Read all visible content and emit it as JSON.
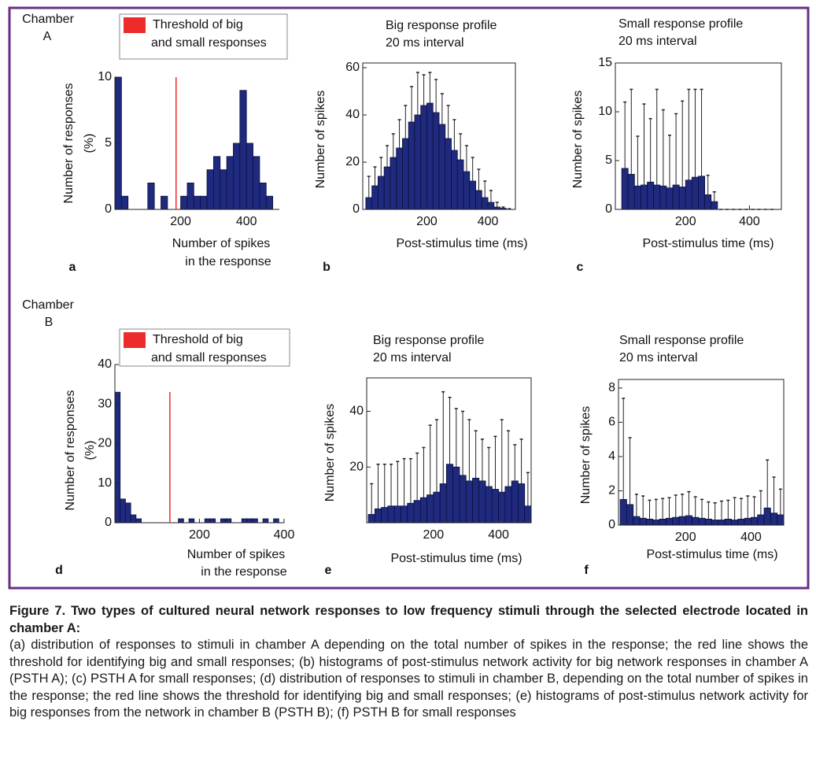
{
  "chart_data": [
    {
      "type": "histogram",
      "annotation": [
        "Chamber",
        "A"
      ],
      "panel_label": "a",
      "box": false,
      "xlabel": [
        "Number of spikes",
        "in the response"
      ],
      "ylabel": [
        "Number of responses",
        "(%)"
      ],
      "bins": [
        0,
        20,
        40,
        60,
        80,
        100,
        120,
        140,
        160,
        180,
        200,
        220,
        240,
        260,
        280,
        300,
        320,
        340,
        360,
        380,
        400,
        420,
        440,
        460,
        480,
        500
      ],
      "values": [
        10,
        1,
        0,
        0,
        0,
        2,
        0,
        1,
        0,
        0,
        1,
        2,
        1,
        1,
        3,
        4,
        3,
        4,
        5,
        9,
        5,
        4,
        2,
        1,
        0
      ],
      "color": "#1f2a7e",
      "xlim": [
        0,
        500
      ],
      "ylim": [
        0,
        10
      ],
      "xticks": [
        200,
        400
      ],
      "yticks": [
        0,
        5,
        10
      ],
      "threshold": {
        "value": 186,
        "color": "#ee2b2b",
        "label": [
          "Threshold of big",
          "and small responses"
        ]
      }
    },
    {
      "type": "histogram",
      "title": [
        "Big response profile",
        "20 ms interval"
      ],
      "panel_label": "b",
      "box": true,
      "xlabel": "Post-stimulus time (ms)",
      "ylabel": "Number of spikes",
      "bins": [
        0,
        20,
        40,
        60,
        80,
        100,
        120,
        140,
        160,
        180,
        200,
        220,
        240,
        260,
        280,
        300,
        320,
        340,
        360,
        380,
        400,
        420,
        440,
        460,
        480
      ],
      "values": [
        5,
        10,
        14,
        18,
        22,
        26,
        30,
        37,
        40,
        44,
        45,
        41,
        36,
        30,
        25,
        21,
        16,
        12,
        8,
        5,
        3,
        1,
        0.5,
        0
      ],
      "errors": [
        9,
        8,
        8,
        9,
        10,
        12,
        14,
        15,
        18,
        13,
        13,
        14,
        13,
        14,
        13,
        11,
        11,
        10,
        9,
        7,
        5,
        2,
        0.5,
        0.3
      ],
      "color": "#1f2a7e",
      "xlim": [
        -10,
        490
      ],
      "ylim": [
        0,
        62
      ],
      "xticks": [
        200,
        400
      ],
      "yticks": [
        0,
        20,
        40,
        60
      ]
    },
    {
      "type": "histogram",
      "title": [
        "Small response profile",
        "20 ms interval"
      ],
      "panel_label": "c",
      "box": true,
      "xlabel": "Post-stimulus time (ms)",
      "ylabel": "Number of spikes",
      "bins": [
        0,
        20,
        40,
        60,
        80,
        100,
        120,
        140,
        160,
        180,
        200,
        220,
        240,
        260,
        280,
        300,
        320,
        340,
        360,
        380,
        400,
        420,
        440,
        460,
        480
      ],
      "values": [
        4.2,
        3.6,
        2.4,
        2.5,
        2.8,
        2.5,
        2.4,
        2.2,
        2.5,
        2.3,
        3,
        3.3,
        3.4,
        1.5,
        0.8,
        0,
        0,
        0,
        0,
        0,
        0,
        0,
        0,
        0
      ],
      "errors": [
        6.8,
        8.7,
        5.1,
        8.3,
        6.5,
        9.8,
        7.8,
        5.4,
        7.3,
        8.8,
        9.3,
        9,
        8.9,
        2,
        1,
        0,
        0,
        0,
        0,
        0,
        0,
        0,
        0,
        0
      ],
      "color": "#1f2a7e",
      "xlim": [
        -20,
        500
      ],
      "ylim": [
        0,
        15
      ],
      "xticks": [
        200,
        400
      ],
      "yticks": [
        0,
        5,
        10,
        15
      ]
    },
    {
      "type": "histogram",
      "annotation": [
        "Chamber",
        "B"
      ],
      "panel_label": "d",
      "box": false,
      "xlabel": [
        "Number of spikes",
        "in the response"
      ],
      "ylabel": [
        "Number of responses",
        "(%)"
      ],
      "bins": [
        0,
        12.5,
        25,
        37.5,
        50,
        62.5,
        75,
        87.5,
        100,
        112.5,
        125,
        137.5,
        150,
        162.5,
        175,
        187.5,
        200,
        212.5,
        225,
        237.5,
        250,
        262.5,
        275,
        287.5,
        300,
        312.5,
        325,
        337.5,
        350,
        362.5,
        375,
        387.5,
        400
      ],
      "values": [
        33,
        6,
        5,
        2,
        1,
        0,
        0,
        0,
        0,
        0,
        0,
        0,
        1,
        0,
        1,
        0,
        0,
        1,
        1,
        0,
        1,
        1,
        0,
        0,
        1,
        1,
        1,
        0,
        1,
        0,
        1,
        0
      ],
      "color": "#1f2a7e",
      "xlim": [
        0,
        400
      ],
      "ylim": [
        0,
        40
      ],
      "xticks": [
        200,
        400
      ],
      "yticks": [
        0,
        10,
        20,
        30,
        40
      ],
      "threshold": {
        "value": 130,
        "color": "#ee2b2b",
        "label": [
          "Threshold of big",
          "and small responses"
        ]
      }
    },
    {
      "type": "histogram",
      "title": [
        "Big response profile",
        "20 ms interval"
      ],
      "panel_label": "e",
      "box": true,
      "xlabel": "Post-stimulus time (ms)",
      "ylabel": "Number of spikes",
      "bins": [
        0,
        20,
        40,
        60,
        80,
        100,
        120,
        140,
        160,
        180,
        200,
        220,
        240,
        260,
        280,
        300,
        320,
        340,
        360,
        380,
        400,
        420,
        440,
        460,
        480,
        500
      ],
      "values": [
        3,
        5,
        5.5,
        6,
        6,
        6,
        7,
        8,
        9,
        10,
        11,
        14,
        21,
        20,
        17,
        15,
        16,
        15,
        13,
        12,
        11,
        13,
        15,
        14,
        6
      ],
      "errors": [
        11,
        16,
        15.5,
        15,
        16,
        17,
        16,
        17,
        18,
        25,
        26,
        33,
        24,
        21,
        23,
        22,
        17,
        15,
        14,
        19,
        26,
        20,
        13,
        16,
        12
      ],
      "color": "#1f2a7e",
      "xlim": [
        -5,
        500
      ],
      "ylim": [
        0,
        52
      ],
      "xticks": [
        200,
        400
      ],
      "yticks": [
        20,
        40
      ]
    },
    {
      "type": "histogram",
      "title": [
        "Small response profile",
        "20 ms interval"
      ],
      "panel_label": "f",
      "box": true,
      "xlabel": "Post-stimulus time (ms)",
      "ylabel": "Number of spikes",
      "bins": [
        0,
        20,
        40,
        60,
        80,
        100,
        120,
        140,
        160,
        180,
        200,
        220,
        240,
        260,
        280,
        300,
        320,
        340,
        360,
        380,
        400,
        420,
        440,
        460,
        480,
        500
      ],
      "values": [
        1.5,
        1.2,
        0.5,
        0.4,
        0.35,
        0.3,
        0.35,
        0.4,
        0.45,
        0.5,
        0.55,
        0.45,
        0.4,
        0.35,
        0.3,
        0.3,
        0.35,
        0.3,
        0.35,
        0.4,
        0.45,
        0.6,
        1,
        0.7,
        0.6
      ],
      "errors": [
        5.9,
        3.9,
        1.3,
        1.3,
        1.1,
        1.2,
        1.2,
        1.2,
        1.3,
        1.3,
        1.4,
        1.2,
        1.1,
        1,
        1,
        1.1,
        1.1,
        1.3,
        1.2,
        1.3,
        1.2,
        1.4,
        2.8,
        2.1,
        1.5
      ],
      "color": "#1f2a7e",
      "xlim": [
        -5,
        500
      ],
      "ylim": [
        0,
        8.5
      ],
      "xticks": [
        200,
        400
      ],
      "yticks": [
        0,
        2,
        4,
        6,
        8
      ]
    }
  ],
  "caption": {
    "title": "Figure 7. Two types of cultured neural network responses to low frequency stimuli through the selected electrode located in chamber A:",
    "text": "(a) distribution of responses to stimuli in chamber A depending on the total number of spikes in the response; the red line shows the threshold for identifying big and small responses; (b) histograms of post-stimulus network activity for big network responses in chamber A (PSTH A); (c) PSTH A for small responses; (d) distribution of responses to stimuli in chamber B, depending on the total number of spikes in the response; the red line shows the threshold for identifying big and small responses; (e) histograms of post-stimulus network activity for big responses from the network in chamber B (PSTH B); (f) PSTH B for small responses"
  }
}
